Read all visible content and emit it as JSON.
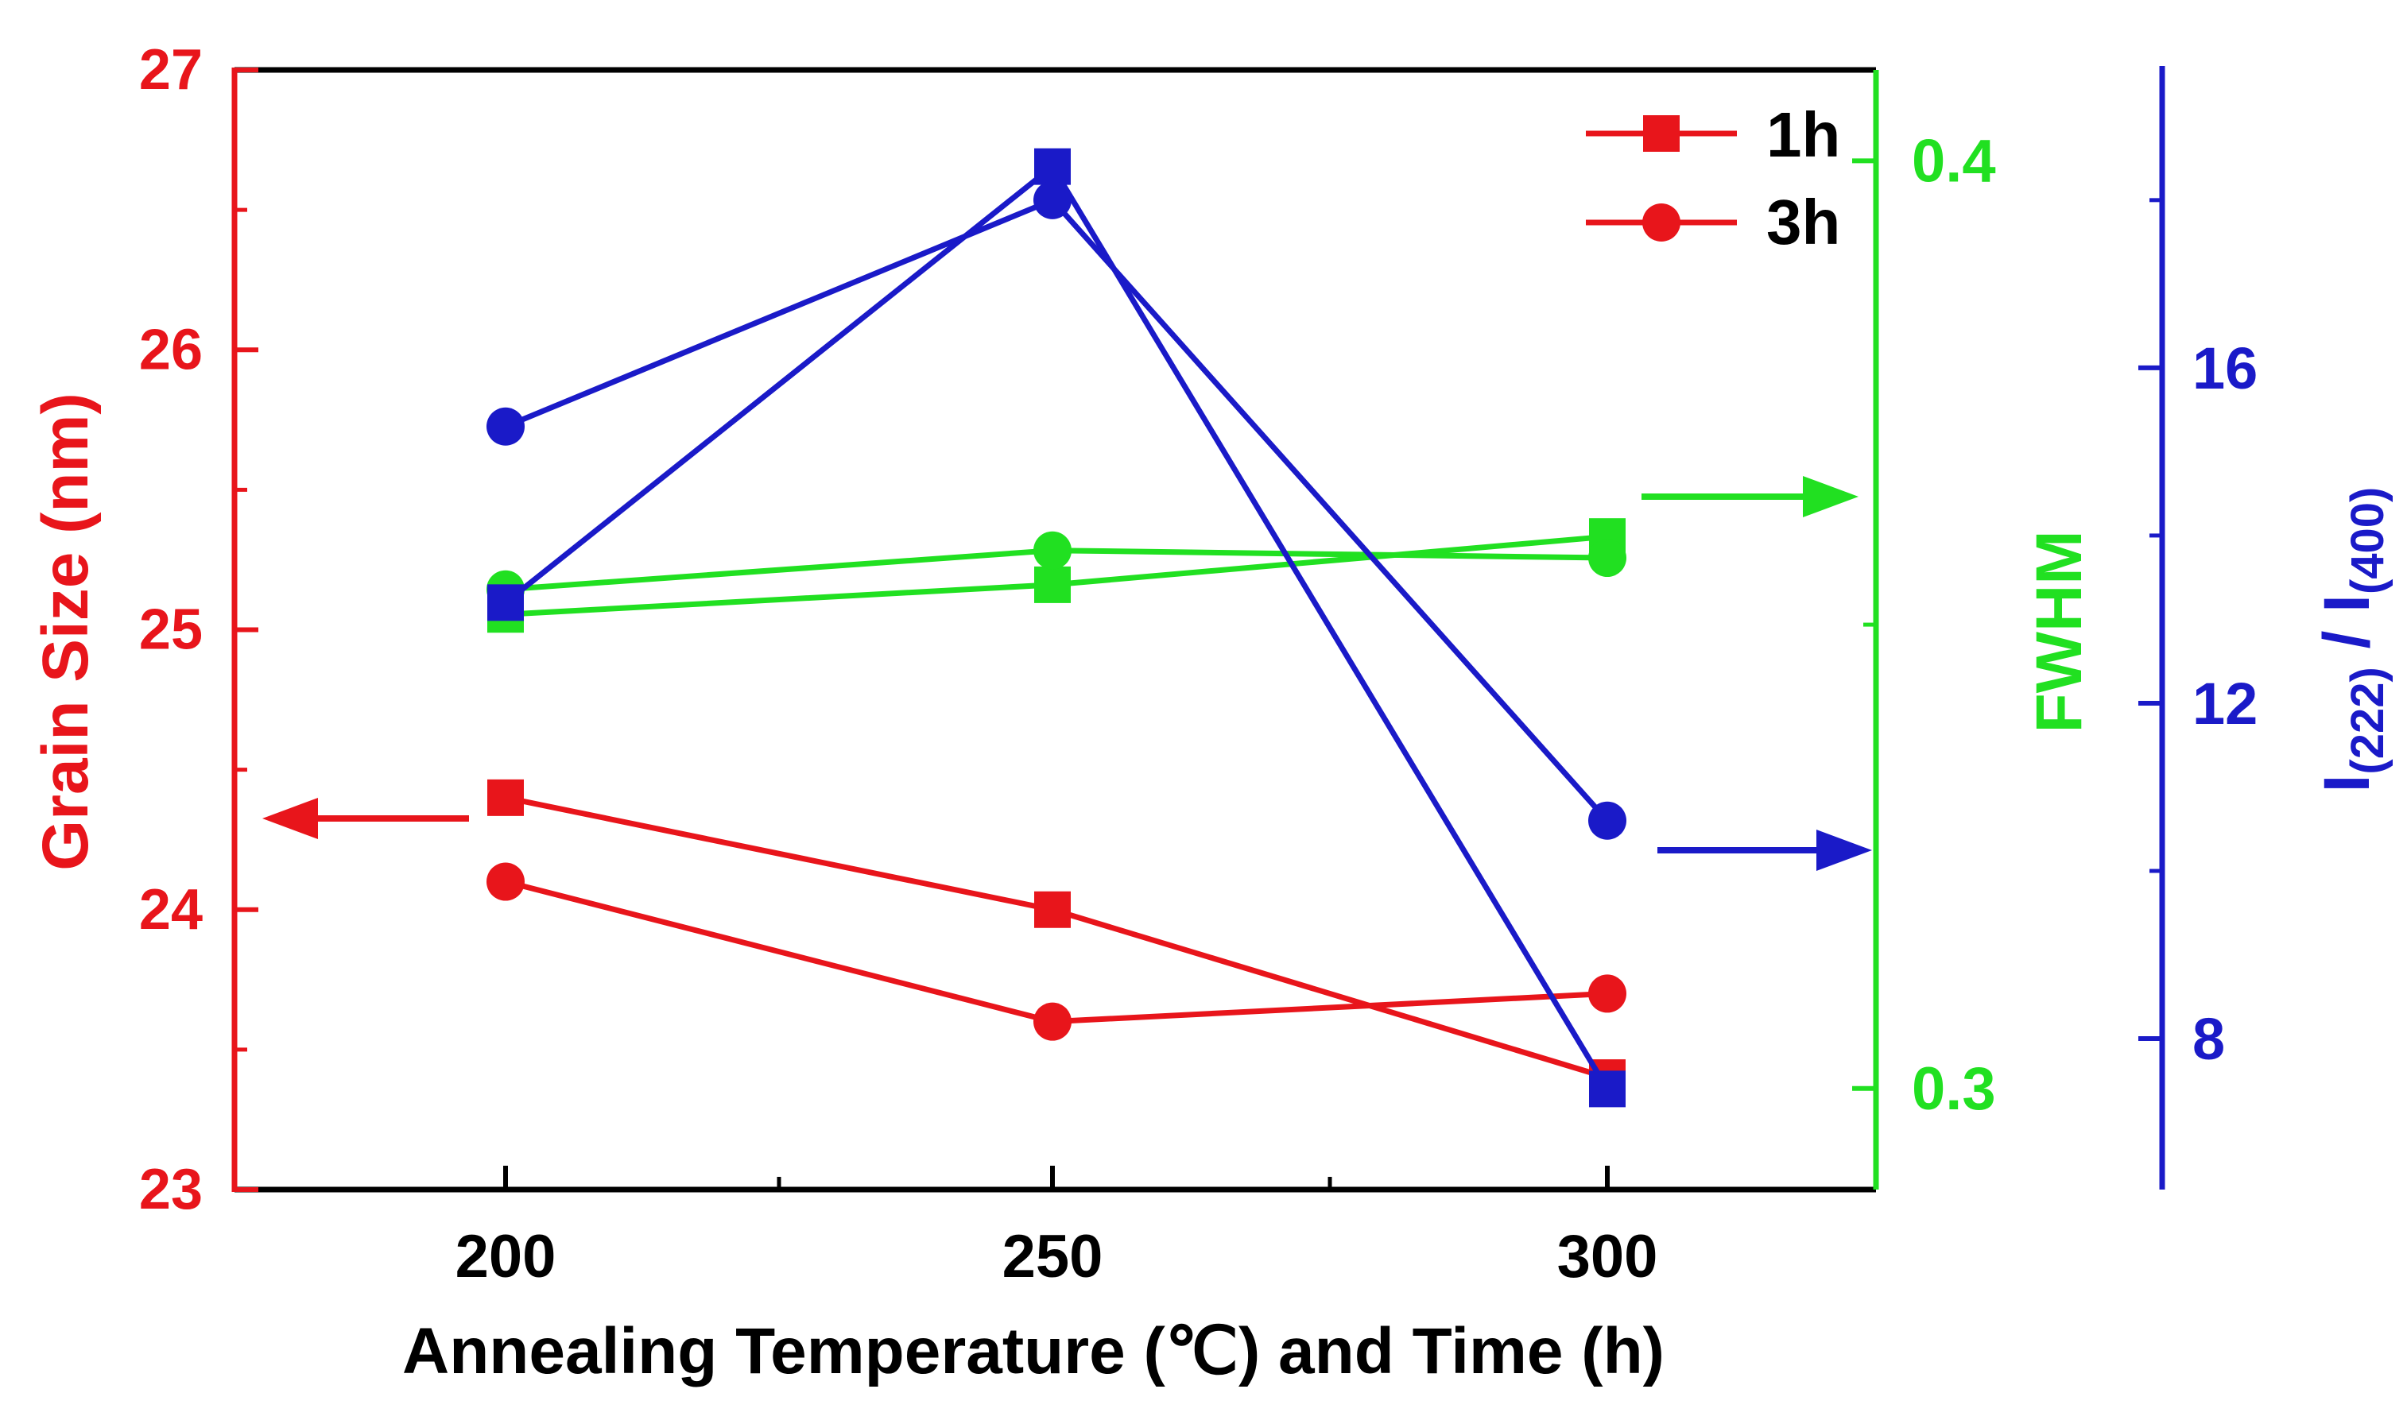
{
  "chart_data": {
    "type": "line",
    "x_categories": [
      "200",
      "250",
      "300"
    ],
    "xlabel": "Annealing Temperature (℃) and Time (h)",
    "axes": {
      "left": {
        "label": "Grain Size (nm)",
        "range": [
          23,
          27
        ],
        "ticks": [
          "23",
          "24",
          "25",
          "26",
          "27"
        ],
        "color": "#e8151b"
      },
      "green": {
        "label": "FWHM",
        "range": [
          0.2891,
          0.4098
        ],
        "ticks": [
          "0.3",
          "0.4"
        ],
        "tick_values": [
          0.3,
          0.4
        ],
        "color": "#21e021"
      },
      "blue": {
        "label_main": "I",
        "label_sub1": "(222)",
        "label_sep": " / I",
        "label_sub2": "(400)",
        "range": [
          6.2,
          19.6
        ],
        "ticks": [
          "8",
          "12",
          "16"
        ],
        "tick_values": [
          8,
          12,
          16
        ],
        "color": "#1a1ac8"
      }
    },
    "legend": [
      {
        "label": "1h",
        "marker": "square"
      },
      {
        "label": "3h",
        "marker": "circle"
      }
    ],
    "series": [
      {
        "name": "Grain Size 1h",
        "axis": "left",
        "marker": "square",
        "values": [
          24.4,
          24.0,
          23.4
        ]
      },
      {
        "name": "Grain Size 3h",
        "axis": "left",
        "marker": "circle",
        "values": [
          24.1,
          23.6,
          23.7
        ]
      },
      {
        "name": "FWHM 1h",
        "axis": "green",
        "marker": "square",
        "values": [
          0.3511,
          0.3543,
          0.3595
        ]
      },
      {
        "name": "FWHM 3h",
        "axis": "green",
        "marker": "circle",
        "values": [
          0.3538,
          0.358,
          0.3572
        ]
      },
      {
        "name": "I ratio 1h",
        "axis": "blue",
        "marker": "square",
        "values": [
          13.2,
          18.4,
          7.4
        ]
      },
      {
        "name": "I ratio 3h",
        "axis": "blue",
        "marker": "circle",
        "values": [
          15.3,
          18.0,
          10.6
        ]
      }
    ]
  }
}
